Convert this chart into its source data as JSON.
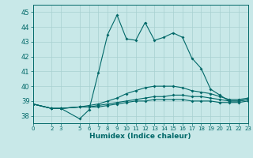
{
  "xlabel": "Humidex (Indice chaleur)",
  "bg_color": "#c8e8e8",
  "grid_color": "#a8d0d0",
  "line_color": "#006868",
  "spine_color": "#006868",
  "ylim": [
    37.5,
    45.5
  ],
  "xlim": [
    0,
    23
  ],
  "yticks": [
    38,
    39,
    40,
    41,
    42,
    43,
    44,
    45
  ],
  "xtick_positions": [
    0,
    2,
    3,
    5,
    6,
    7,
    8,
    9,
    10,
    11,
    12,
    13,
    14,
    15,
    16,
    17,
    18,
    19,
    20,
    21,
    22,
    23
  ],
  "xtick_labels": [
    "0",
    "2",
    "3",
    "5",
    "6",
    "7",
    "8",
    "9",
    "10",
    "11",
    "12",
    "13",
    "14",
    "15",
    "16",
    "17",
    "18",
    "19",
    "20",
    "21",
    "22",
    "23"
  ],
  "lines": [
    {
      "x": [
        0,
        2,
        3,
        5,
        6,
        7,
        8,
        9,
        10,
        11,
        12,
        13,
        14,
        15,
        16,
        17,
        18,
        19,
        20,
        21,
        22,
        23
      ],
      "y": [
        38.8,
        38.5,
        38.5,
        38.6,
        38.6,
        38.6,
        38.7,
        38.8,
        38.9,
        39.0,
        39.0,
        39.1,
        39.1,
        39.1,
        39.1,
        39.0,
        39.0,
        39.0,
        38.9,
        38.9,
        38.9,
        39.0
      ]
    },
    {
      "x": [
        0,
        2,
        3,
        5,
        6,
        7,
        8,
        9,
        10,
        11,
        12,
        13,
        14,
        15,
        16,
        17,
        18,
        19,
        20,
        21,
        22,
        23
      ],
      "y": [
        38.8,
        38.5,
        38.5,
        38.6,
        38.6,
        38.7,
        38.8,
        38.9,
        39.0,
        39.1,
        39.2,
        39.3,
        39.3,
        39.4,
        39.4,
        39.3,
        39.3,
        39.2,
        39.1,
        39.0,
        39.0,
        39.1
      ]
    },
    {
      "x": [
        0,
        2,
        3,
        5,
        6,
        7,
        8,
        9,
        10,
        11,
        12,
        13,
        14,
        15,
        16,
        17,
        18,
        19,
        20,
        21,
        22,
        23
      ],
      "y": [
        38.8,
        38.5,
        38.5,
        38.6,
        38.7,
        38.8,
        39.0,
        39.2,
        39.5,
        39.7,
        39.9,
        40.0,
        40.0,
        40.0,
        39.9,
        39.7,
        39.6,
        39.5,
        39.3,
        39.1,
        39.1,
        39.2
      ]
    },
    {
      "x": [
        0,
        2,
        3,
        5,
        6,
        7,
        8,
        9,
        10,
        11,
        12,
        13,
        14,
        15,
        16,
        17,
        18,
        19,
        20,
        21,
        22,
        23
      ],
      "y": [
        38.8,
        38.5,
        38.5,
        37.8,
        38.4,
        40.9,
        43.5,
        44.8,
        43.2,
        43.1,
        44.3,
        43.1,
        43.3,
        43.6,
        43.3,
        41.9,
        41.2,
        39.8,
        39.4,
        39.0,
        39.0,
        39.1
      ]
    }
  ]
}
